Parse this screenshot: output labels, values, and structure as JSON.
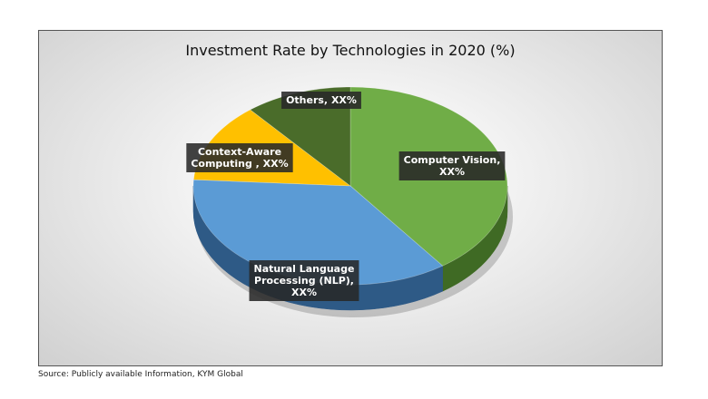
{
  "chart_data": {
    "type": "pie",
    "title": "Investment Rate by Technologies in 2020 (%)",
    "style": "3d",
    "slices": [
      {
        "name": "Computer Vision",
        "label_lines": [
          "Computer Vision,",
          "XX%"
        ],
        "value": 40,
        "color": "#70ad47",
        "side_color": "#3f6a24"
      },
      {
        "name": "Natural Language Processing (NLP)",
        "label_lines": [
          "Natural Language",
          "Processing (NLP),",
          "XX%"
        ],
        "value": 36,
        "color": "#5b9bd5",
        "side_color": "#2e5a86"
      },
      {
        "name": "Context-Aware Computing",
        "label_lines": [
          "Context-Aware",
          "Computing , XX%"
        ],
        "value": 13,
        "color": "#ffc000",
        "side_color": "#a87d00"
      },
      {
        "name": "Others",
        "label_lines": [
          "Others, XX%"
        ],
        "value": 11,
        "color": "#4a6c2a",
        "side_color": "#2c4219"
      }
    ]
  },
  "source_text": "Source: Publicly available Information, KYM Global"
}
